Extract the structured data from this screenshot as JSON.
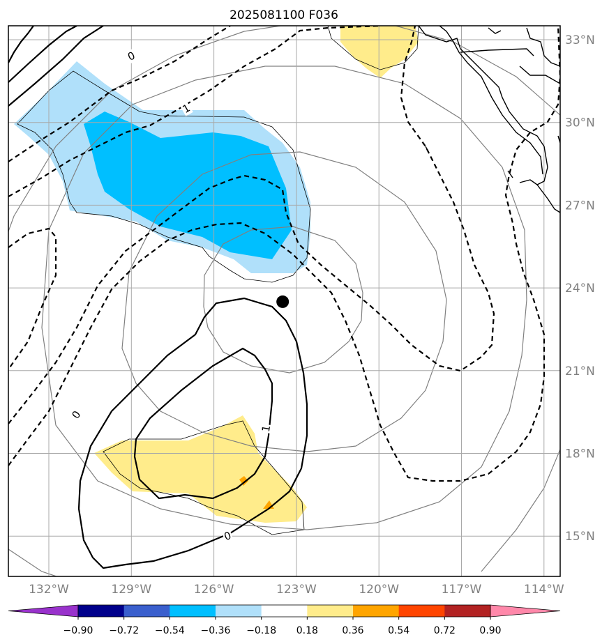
{
  "title": "2025081100 F036",
  "map": {
    "lon_ticks": [
      {
        "lon": -132,
        "label": "132°W"
      },
      {
        "lon": -129,
        "label": "129°W"
      },
      {
        "lon": -126,
        "label": "126°W"
      },
      {
        "lon": -123,
        "label": "123°W"
      },
      {
        "lon": -120,
        "label": "120°W"
      },
      {
        "lon": -117,
        "label": "117°W"
      },
      {
        "lon": -114,
        "label": "114°W"
      }
    ],
    "lat_ticks": [
      {
        "lat": 33,
        "label": "33°N"
      },
      {
        "lat": 30,
        "label": "30°N"
      },
      {
        "lat": 27,
        "label": "27°N"
      },
      {
        "lat": 24,
        "label": "24°N"
      },
      {
        "lat": 21,
        "label": "21°N"
      },
      {
        "lat": 18,
        "label": "18°N"
      },
      {
        "lat": 15,
        "label": "15°N"
      }
    ],
    "center_marker": {
      "lon": -123.5,
      "lat": 23.5
    },
    "contour_labels": [
      {
        "text": "0",
        "lon": -129.0,
        "lat": 32.4,
        "rotate": -25
      },
      {
        "text": "1",
        "lon": -127.0,
        "lat": 30.5,
        "rotate": -30
      },
      {
        "text": "0",
        "lon": -131.0,
        "lat": 19.4,
        "rotate": -55
      },
      {
        "text": "1",
        "lon": -124.1,
        "lat": 18.9,
        "rotate": -80
      },
      {
        "text": "0",
        "lon": -125.5,
        "lat": 15.0,
        "rotate": -20
      }
    ]
  },
  "colorbar": {
    "levels": [
      "−0.90",
      "−0.72",
      "−0.54",
      "−0.36",
      "−0.18",
      "0.18",
      "0.36",
      "0.54",
      "0.72",
      "0.90"
    ],
    "colors": [
      "#9932cc",
      "#00008b",
      "#3a5fcd",
      "#00bfff",
      "#b0e0fa",
      "#ffffff",
      "#ffec8b",
      "#ffa500",
      "#ff4500",
      "#b22222",
      "#ff88aa"
    ]
  }
}
